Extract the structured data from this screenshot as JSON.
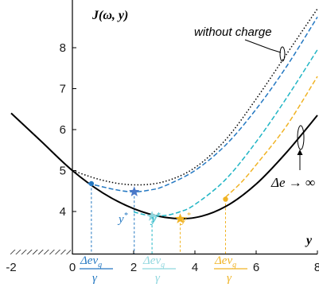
{
  "chart_data": {
    "type": "line",
    "title": "",
    "ylabel": "J(ω, y)",
    "xlabel": "y",
    "xlim": [
      -2,
      8
    ],
    "ylim": [
      3.1,
      9.0
    ],
    "x_ticks": [
      -2,
      0,
      2,
      4,
      6,
      8
    ],
    "y_ticks": [
      4,
      5,
      6,
      7,
      8
    ],
    "grid": false,
    "series": [
      {
        "color": "#000000",
        "style": "solid",
        "x": [
          -2,
          -1,
          0,
          1,
          2,
          3,
          4,
          5,
          6,
          7,
          8
        ],
        "y": [
          6.4,
          5.7,
          5.0,
          4.45,
          4.07,
          3.86,
          3.85,
          4.12,
          4.67,
          5.45,
          6.35
        ]
      },
      {
        "color": "#000000",
        "style": "dotted",
        "x": [
          0,
          1,
          2,
          3,
          4,
          5,
          6,
          7,
          8
        ],
        "y": [
          5.0,
          4.76,
          4.65,
          4.73,
          5.07,
          5.75,
          6.75,
          7.85,
          8.95
        ]
      },
      {
        "color": "#2478c2",
        "style": "dashed",
        "x": [
          0.5,
          1.0,
          1.5,
          2.0,
          2.5,
          3,
          4,
          5,
          6,
          7,
          8
        ],
        "y": [
          4.69,
          4.6,
          4.52,
          4.48,
          4.52,
          4.62,
          5.0,
          5.62,
          6.5,
          7.55,
          8.75
        ]
      },
      {
        "color": "#20b5c5",
        "style": "dashed",
        "x": [
          2.0,
          2.5,
          3.0,
          3.5,
          4,
          5,
          6,
          7,
          8
        ],
        "y": [
          3.99,
          3.9,
          3.9,
          3.99,
          4.17,
          4.78,
          5.7,
          6.78,
          7.95
        ]
      },
      {
        "color": "#f0b324",
        "style": "dashed",
        "x": [
          5.0,
          5.5,
          6,
          7,
          8
        ],
        "y": [
          4.35,
          4.7,
          5.14,
          6.1,
          7.3
        ]
      }
    ],
    "markers": [
      {
        "shape": "dot",
        "color": "#2478c2",
        "x": 0.62,
        "y": 4.68
      },
      {
        "shape": "star",
        "color": "#4a78c8",
        "x": 2.02,
        "y": 4.48
      },
      {
        "shape": "star",
        "color": "#8fd6de",
        "x": 2.6,
        "y": 3.88
      },
      {
        "shape": "star",
        "color": "#f0b324",
        "x": 3.52,
        "y": 3.82
      },
      {
        "shape": "dot",
        "color": "#f0b324",
        "x": 5.0,
        "y": 4.3
      }
    ],
    "guides": [
      {
        "color": "#2478c2",
        "x": 0.62,
        "y": 4.68
      },
      {
        "color": "#2478c2",
        "x": 2.02,
        "y": 4.48
      },
      {
        "color": "#20b5c5",
        "x": 2.6,
        "y": 3.88
      },
      {
        "color": "#f0b324",
        "x": 3.52,
        "y": 3.82
      },
      {
        "color": "#f0b324",
        "x": 5.0,
        "y": 4.3
      }
    ],
    "annotations": {
      "without_charge": "without charge",
      "delta_e": "Δe → ∞",
      "y_star": "y",
      "y_star_sup": "*",
      "frac_num": "Δev",
      "frac_sub": "g",
      "frac_den": "γ"
    },
    "ylabel_parts": {
      "J": "J",
      "open": "(",
      "omega": "ω",
      "comma": ", ",
      "y": "y",
      "close": ")"
    }
  }
}
